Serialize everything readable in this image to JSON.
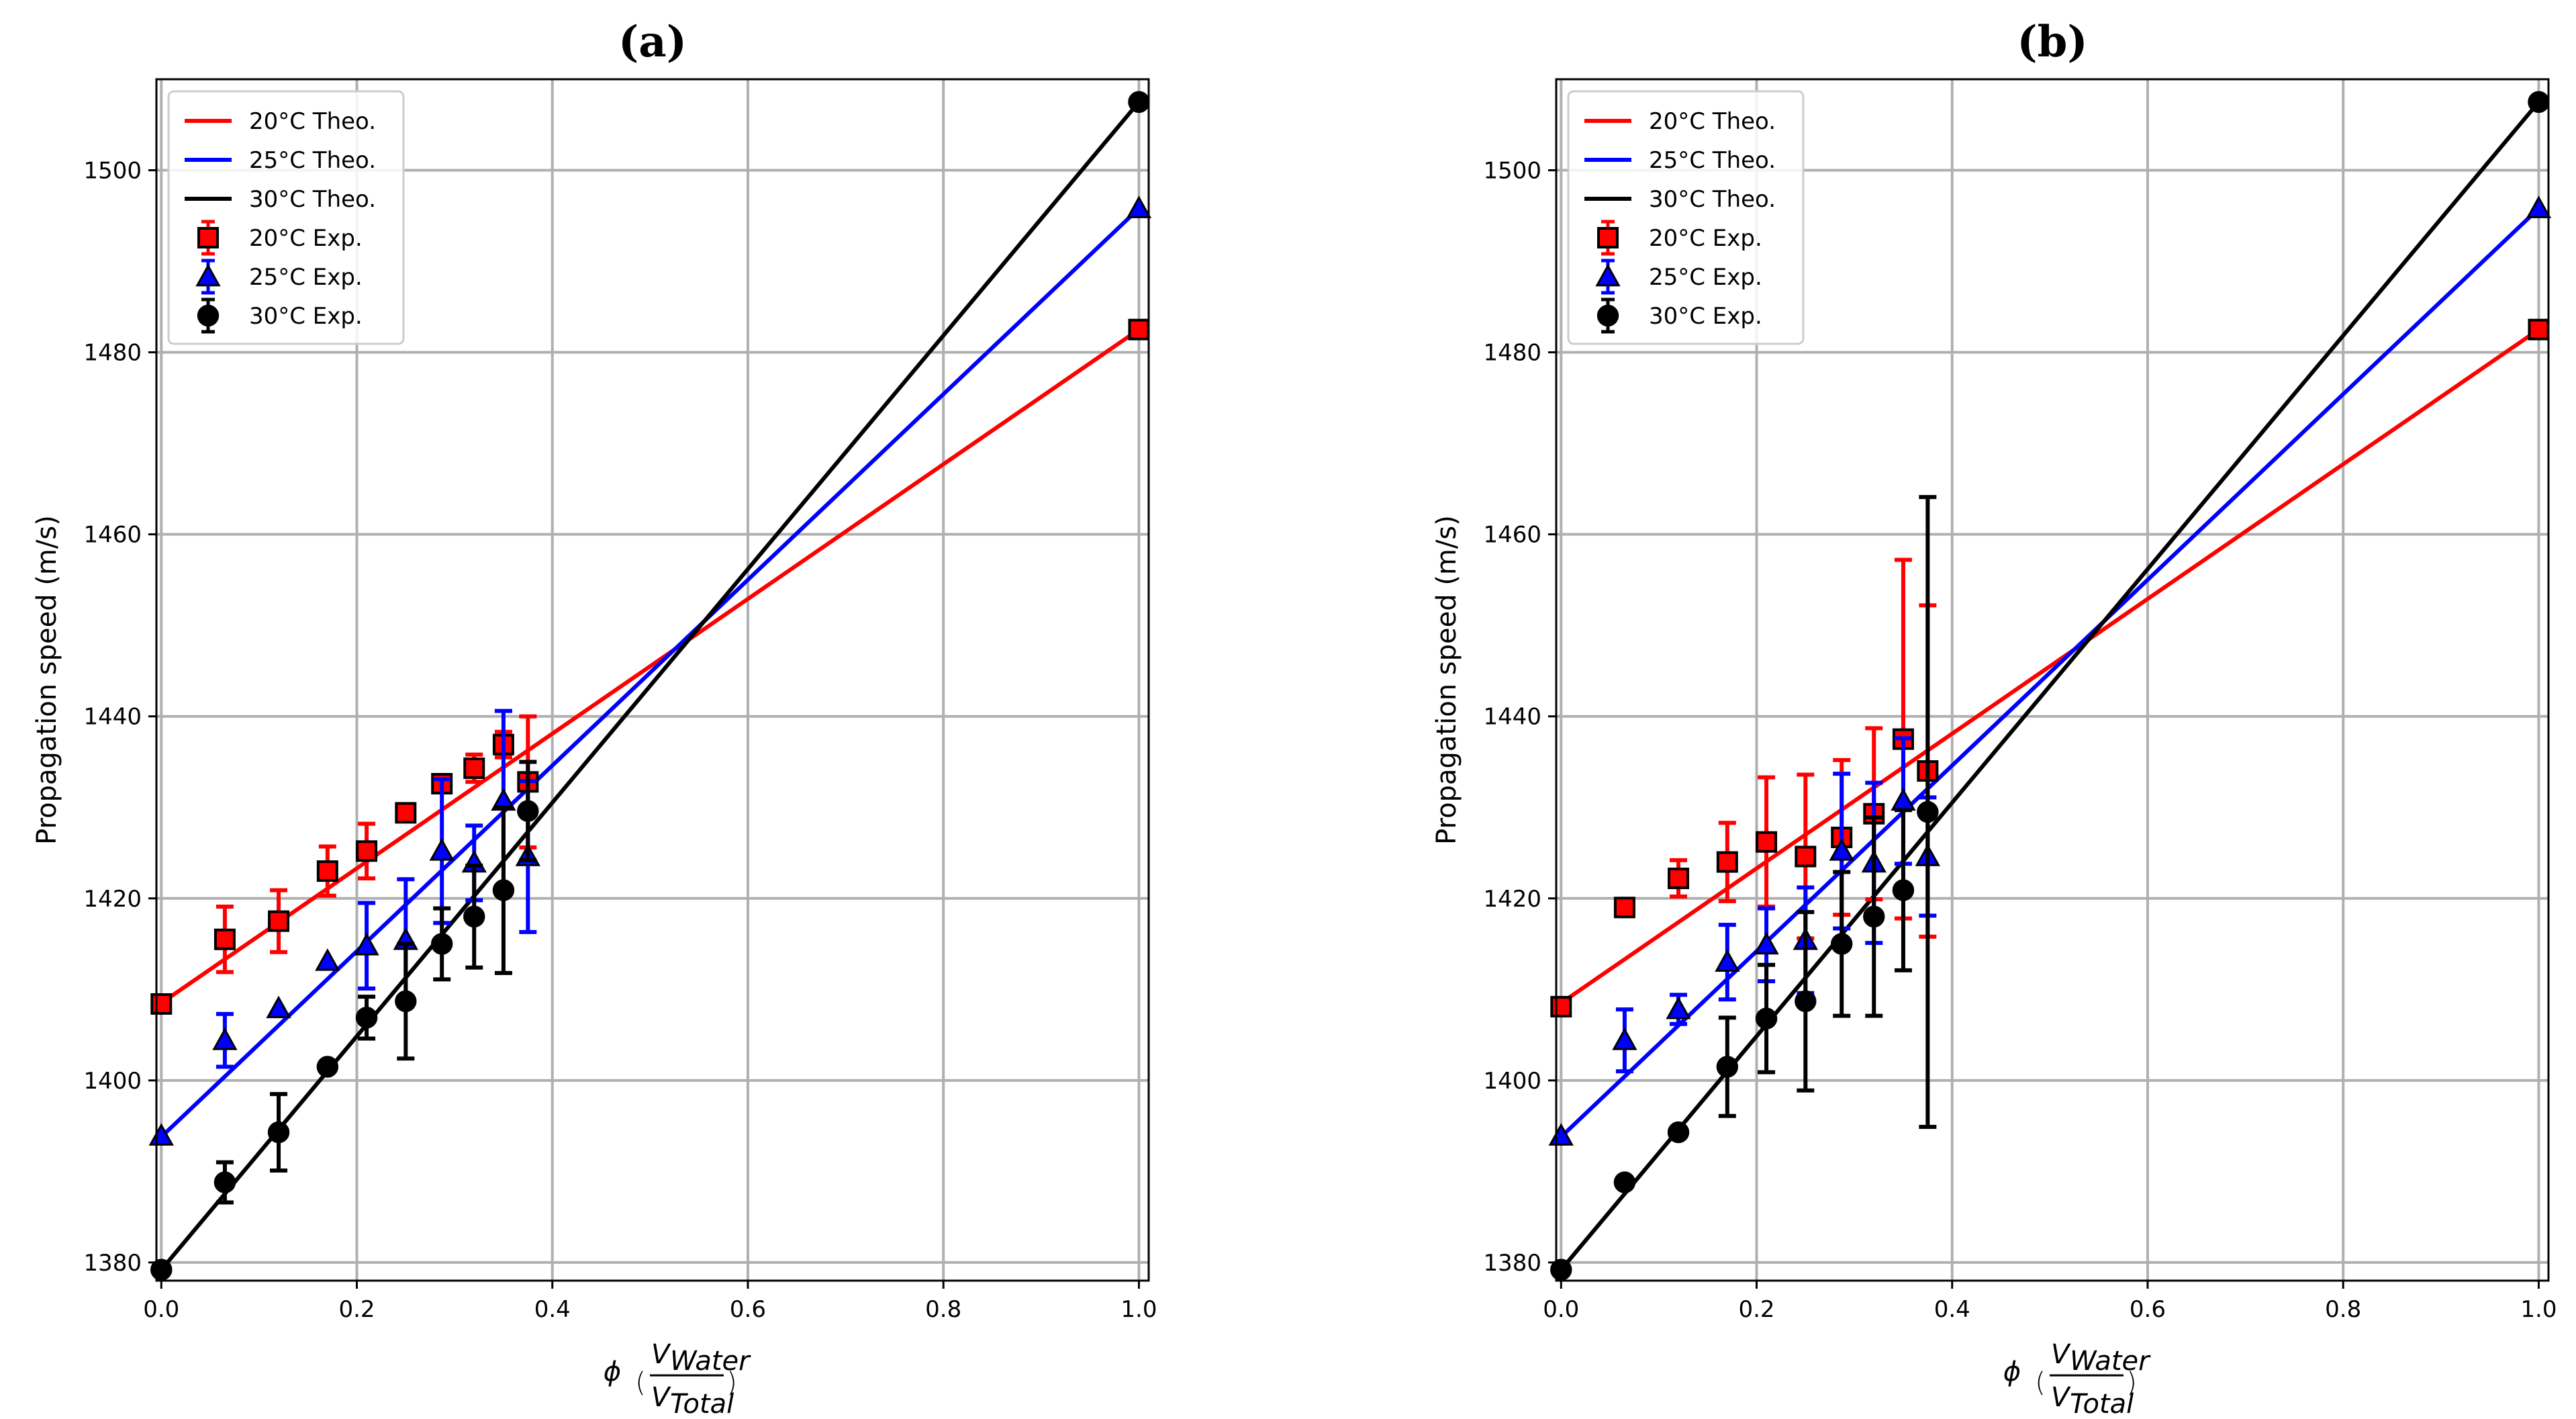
{
  "colors": {
    "t20": "#ff0000",
    "t25": "#0000ff",
    "t30": "#000000",
    "grid": "#b0b0b0"
  },
  "chart_data": [
    {
      "type": "scatter",
      "title": "(a)",
      "xlabel_prefix": "ϕ",
      "xlabel_num": "V",
      "xlabel_num_sub": "Water",
      "xlabel_den": "V",
      "xlabel_den_sub": "Total",
      "ylabel": "Propagation speed (m/s)",
      "xlim": [
        -0.005,
        1.01
      ],
      "ylim": [
        1378,
        1510
      ],
      "xticks": [
        0.0,
        0.2,
        0.4,
        0.6,
        0.8,
        1.0
      ],
      "xtick_labels": [
        "0.0",
        "0.2",
        "0.4",
        "0.6",
        "0.8",
        "1.0"
      ],
      "yticks": [
        1380,
        1400,
        1420,
        1440,
        1460,
        1480,
        1500
      ],
      "ytick_labels": [
        "1380",
        "1400",
        "1420",
        "1440",
        "1460",
        "1480",
        "1500"
      ],
      "grid": true,
      "legend_position": "top-left",
      "legend_entries": [
        {
          "label": "20°C Theo.",
          "series": "t20",
          "kind": "line"
        },
        {
          "label": "25°C Theo.",
          "series": "t25",
          "kind": "line"
        },
        {
          "label": "30°C Theo.",
          "series": "t30",
          "kind": "line"
        },
        {
          "label": "20°C Exp.",
          "series": "t20",
          "kind": "square"
        },
        {
          "label": "25°C Exp.",
          "series": "t25",
          "kind": "triangle"
        },
        {
          "label": "30°C Exp.",
          "series": "t30",
          "kind": "circle"
        }
      ],
      "theory_lines": [
        {
          "name": "20°C Theo.",
          "series": "t20",
          "x": [
            0.0,
            1.0
          ],
          "y": [
            1408.5,
            1482.5
          ]
        },
        {
          "name": "25°C Theo.",
          "series": "t25",
          "x": [
            0.0,
            1.0
          ],
          "y": [
            1393.8,
            1495.8
          ]
        },
        {
          "name": "30°C Theo.",
          "series": "t30",
          "x": [
            0.0,
            1.0
          ],
          "y": [
            1379.2,
            1507.5
          ]
        }
      ],
      "experimental": [
        {
          "name": "20°C Exp.",
          "series": "t20",
          "marker": "square",
          "x": [
            0.0,
            0.065,
            0.12,
            0.17,
            0.21,
            0.25,
            0.287,
            0.32,
            0.35,
            0.375,
            1.0
          ],
          "y": [
            1408.4,
            1415.5,
            1417.5,
            1423.0,
            1425.2,
            1429.4,
            1432.6,
            1434.3,
            1436.9,
            1432.8,
            1482.5
          ],
          "err": [
            0.5,
            3.6,
            3.4,
            2.7,
            3.0,
            0.5,
            0.6,
            1.5,
            1.4,
            7.2,
            0.5
          ]
        },
        {
          "name": "25°C Exp.",
          "series": "t25",
          "marker": "triangle",
          "x": [
            0.0,
            0.065,
            0.12,
            0.17,
            0.21,
            0.25,
            0.287,
            0.32,
            0.35,
            0.375,
            1.0
          ],
          "y": [
            1393.9,
            1404.4,
            1407.9,
            1413.1,
            1414.8,
            1415.4,
            1425.2,
            1423.9,
            1430.7,
            1424.6,
            1495.8
          ],
          "err": [
            0.5,
            2.9,
            0.6,
            0.6,
            4.7,
            6.7,
            7.9,
            4.1,
            9.9,
            8.3,
            0.5
          ]
        },
        {
          "name": "30°C Exp.",
          "series": "t30",
          "marker": "circle",
          "x": [
            0.0,
            0.065,
            0.12,
            0.17,
            0.21,
            0.25,
            0.287,
            0.32,
            0.35,
            0.375,
            1.0
          ],
          "y": [
            1379.2,
            1388.8,
            1394.3,
            1401.5,
            1406.9,
            1408.7,
            1415.0,
            1418.0,
            1420.9,
            1429.6,
            1507.5
          ],
          "err": [
            0.5,
            2.2,
            4.2,
            0.7,
            2.3,
            6.3,
            3.9,
            5.6,
            9.1,
            5.4,
            0.5
          ]
        }
      ]
    },
    {
      "type": "scatter",
      "title": "(b)",
      "xlabel_prefix": "ϕ",
      "xlabel_num": "V",
      "xlabel_num_sub": "Water",
      "xlabel_den": "V",
      "xlabel_den_sub": "Total",
      "ylabel": "Propagation speed (m/s)",
      "xlim": [
        -0.005,
        1.01
      ],
      "ylim": [
        1378,
        1510
      ],
      "xticks": [
        0.0,
        0.2,
        0.4,
        0.6,
        0.8,
        1.0
      ],
      "xtick_labels": [
        "0.0",
        "0.2",
        "0.4",
        "0.6",
        "0.8",
        "1.0"
      ],
      "yticks": [
        1380,
        1400,
        1420,
        1440,
        1460,
        1480,
        1500
      ],
      "ytick_labels": [
        "1380",
        "1400",
        "1420",
        "1440",
        "1460",
        "1480",
        "1500"
      ],
      "grid": true,
      "legend_position": "top-left",
      "legend_entries": [
        {
          "label": "20°C Theo.",
          "series": "t20",
          "kind": "line"
        },
        {
          "label": "25°C Theo.",
          "series": "t25",
          "kind": "line"
        },
        {
          "label": "30°C Theo.",
          "series": "t30",
          "kind": "line"
        },
        {
          "label": "20°C Exp.",
          "series": "t20",
          "kind": "square"
        },
        {
          "label": "25°C Exp.",
          "series": "t25",
          "kind": "triangle"
        },
        {
          "label": "30°C Exp.",
          "series": "t30",
          "kind": "circle"
        }
      ],
      "theory_lines": [
        {
          "name": "20°C Theo.",
          "series": "t20",
          "x": [
            0.0,
            1.0
          ],
          "y": [
            1408.5,
            1482.5
          ]
        },
        {
          "name": "25°C Theo.",
          "series": "t25",
          "x": [
            0.0,
            1.0
          ],
          "y": [
            1393.8,
            1495.8
          ]
        },
        {
          "name": "30°C Theo.",
          "series": "t30",
          "x": [
            0.0,
            1.0
          ],
          "y": [
            1379.2,
            1507.5
          ]
        }
      ],
      "experimental": [
        {
          "name": "20°C Exp.",
          "series": "t20",
          "marker": "square",
          "x": [
            0.0,
            0.065,
            0.12,
            0.17,
            0.21,
            0.25,
            0.287,
            0.32,
            0.35,
            0.375,
            1.0
          ],
          "y": [
            1408.1,
            1419.0,
            1422.2,
            1424.0,
            1426.2,
            1424.6,
            1426.7,
            1429.3,
            1437.5,
            1434.0,
            1482.5
          ],
          "err": [
            0.5,
            0.5,
            2.0,
            4.3,
            7.1,
            9.0,
            8.5,
            9.4,
            19.7,
            18.2,
            0.5
          ]
        },
        {
          "name": "25°C Exp.",
          "series": "t25",
          "marker": "triangle",
          "x": [
            0.0,
            0.065,
            0.12,
            0.17,
            0.21,
            0.25,
            0.287,
            0.32,
            0.35,
            0.375,
            1.0
          ],
          "y": [
            1393.9,
            1404.4,
            1407.8,
            1413.0,
            1414.9,
            1415.4,
            1425.2,
            1423.9,
            1430.7,
            1424.6,
            1495.8
          ],
          "err": [
            0.5,
            3.4,
            1.6,
            4.1,
            4.0,
            5.8,
            8.5,
            8.8,
            6.9,
            6.5,
            0.5
          ]
        },
        {
          "name": "30°C Exp.",
          "series": "t30",
          "marker": "circle",
          "x": [
            0.0,
            0.065,
            0.12,
            0.17,
            0.21,
            0.25,
            0.287,
            0.32,
            0.35,
            0.375,
            1.0
          ],
          "y": [
            1379.2,
            1388.8,
            1394.3,
            1401.5,
            1406.8,
            1408.7,
            1415.0,
            1418.0,
            1420.9,
            1429.5,
            1507.5
          ],
          "err": [
            0.5,
            0.6,
            0.6,
            5.4,
            5.9,
            9.8,
            7.9,
            10.9,
            8.8,
            34.6,
            0.5
          ]
        }
      ]
    }
  ]
}
